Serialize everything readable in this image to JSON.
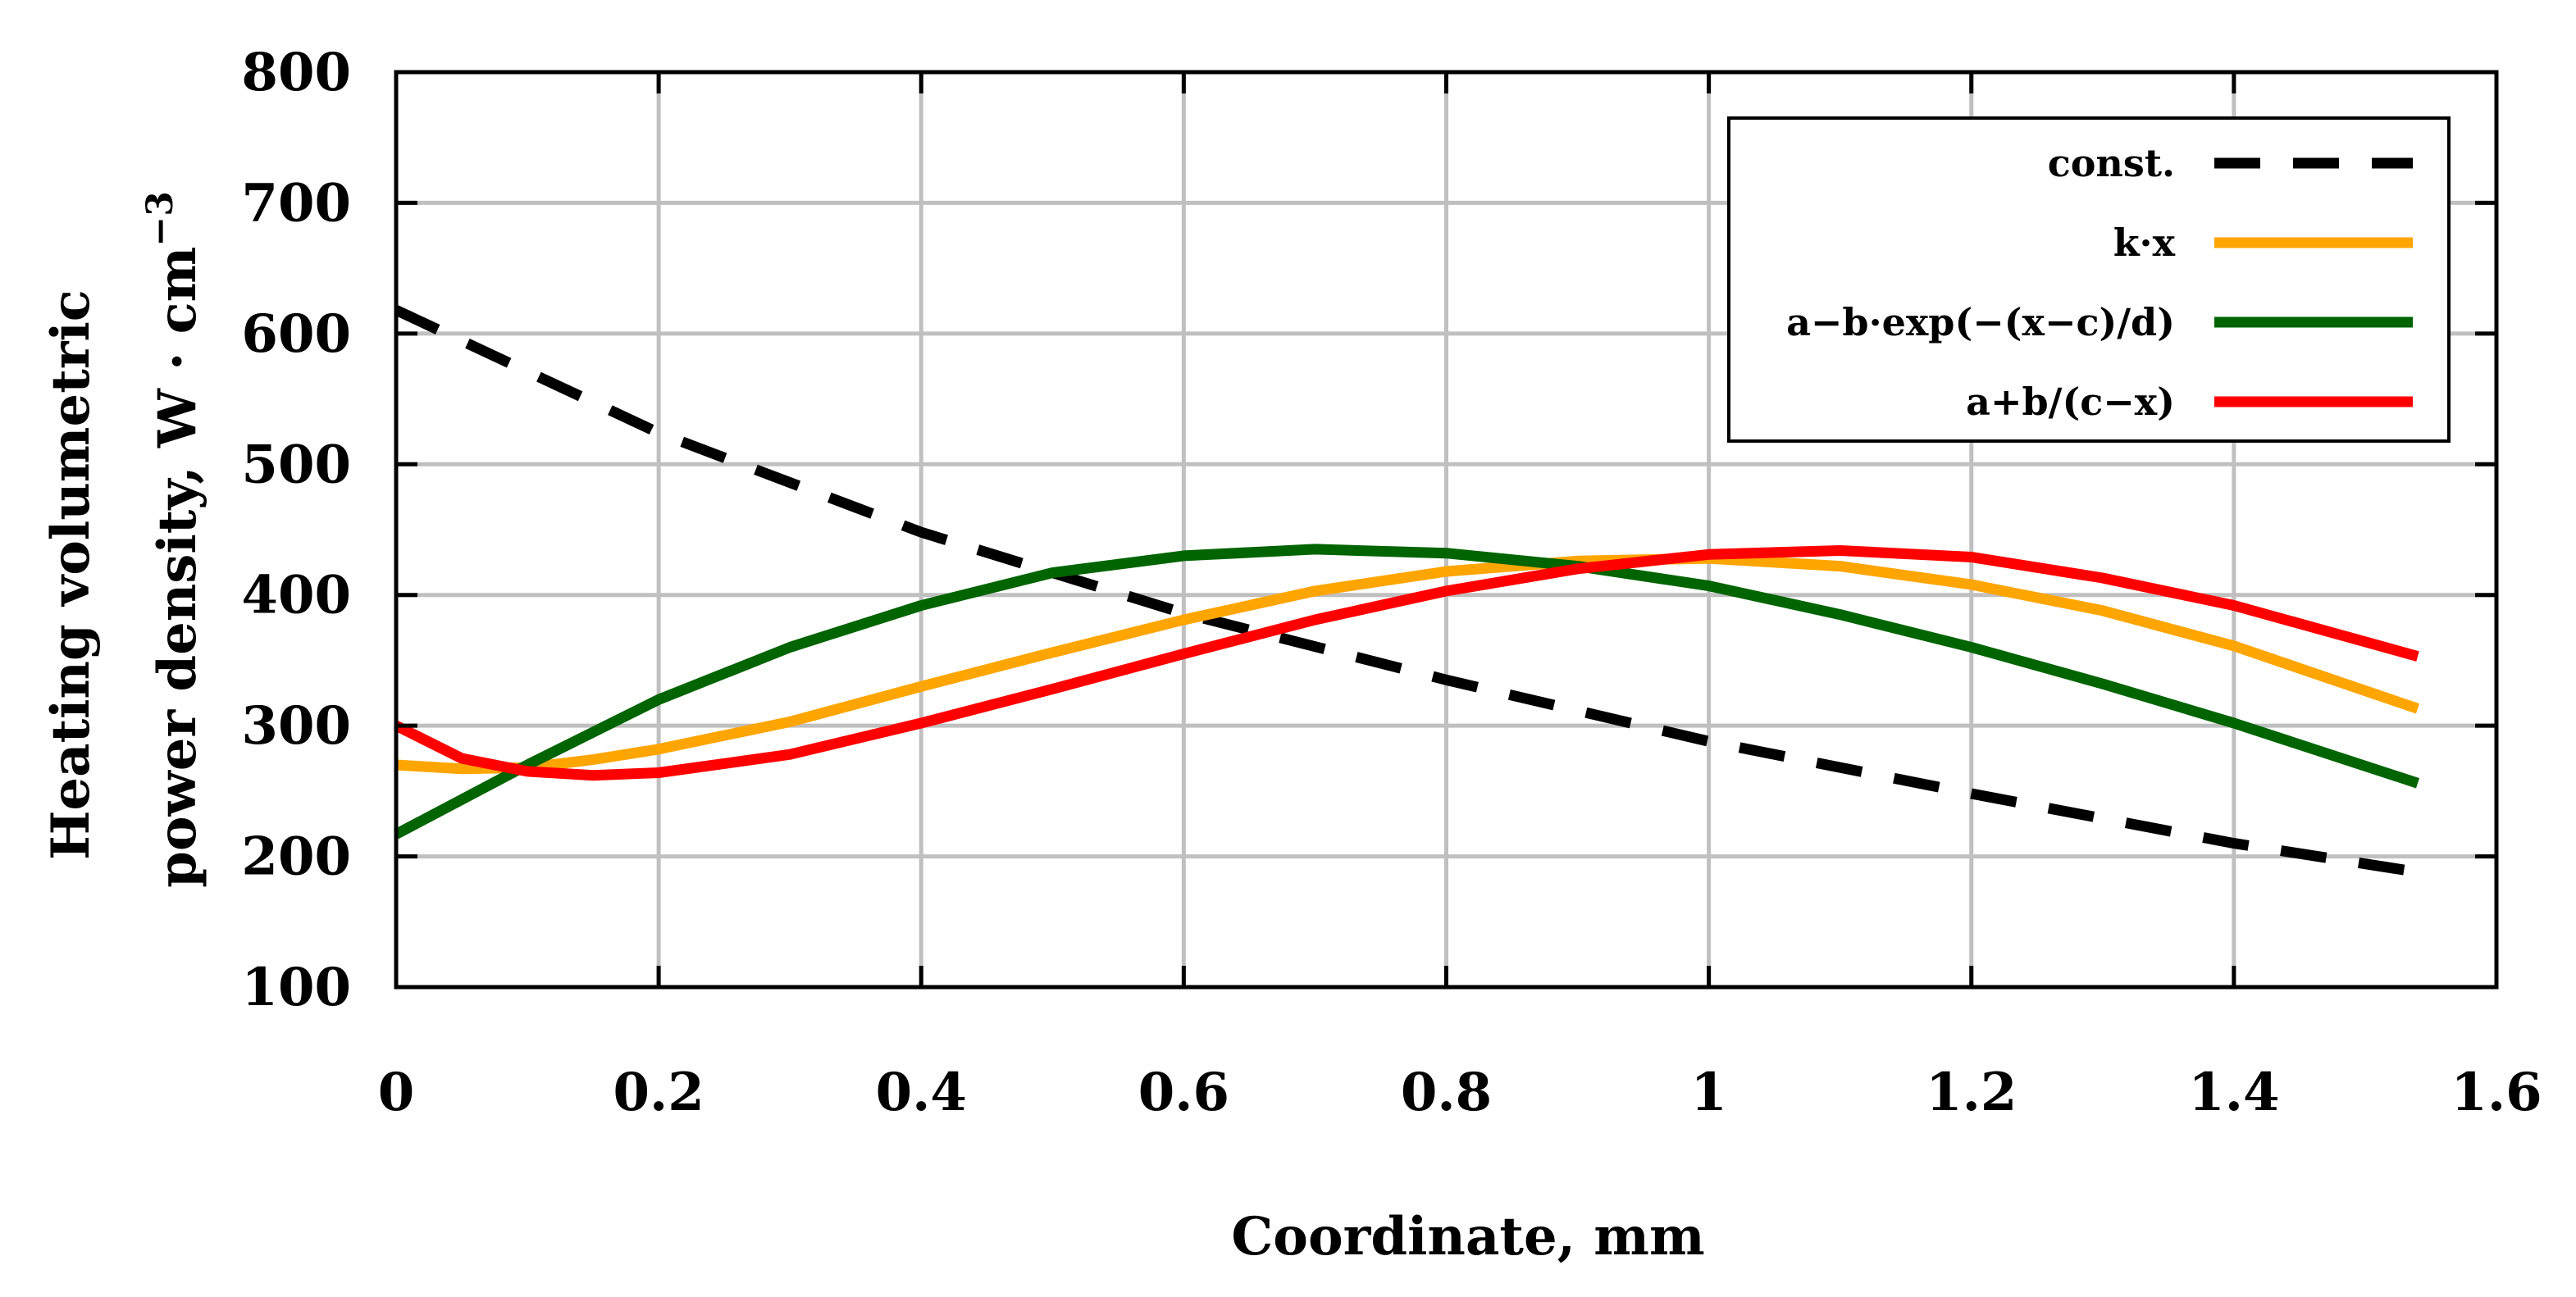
{
  "chart_data": {
    "type": "line",
    "xlabel": "Coordinate, mm",
    "ylabel_line1": "Heating volumetric",
    "ylabel_line2": "power density, W · cm",
    "ylabel_sup": "−3",
    "xlim": [
      0,
      1.6
    ],
    "ylim": [
      100,
      800
    ],
    "xticks": [
      0,
      0.2,
      0.4,
      0.6,
      0.8,
      1.0,
      1.2,
      1.4,
      1.6
    ],
    "xtick_labels": [
      "0",
      "0.2",
      "0.4",
      "0.6",
      "0.8",
      "1",
      "1.2",
      "1.4",
      "1.6"
    ],
    "yticks": [
      100,
      200,
      300,
      400,
      500,
      600,
      700,
      800
    ],
    "ytick_labels": [
      "100",
      "200",
      "300",
      "400",
      "500",
      "600",
      "700",
      "800"
    ],
    "grid": true,
    "legend_position": "top-right",
    "series": [
      {
        "name": "const.",
        "color": "#000000",
        "dash": true,
        "x": [
          0,
          0.2,
          0.4,
          0.6,
          0.8,
          1.0,
          1.2,
          1.4,
          1.54
        ],
        "y": [
          618,
          524,
          448,
          386,
          335,
          288,
          248,
          210,
          188
        ]
      },
      {
        "name": "k·x",
        "color": "#FFA500",
        "dash": false,
        "x": [
          0,
          0.05,
          0.1,
          0.15,
          0.2,
          0.3,
          0.4,
          0.5,
          0.6,
          0.7,
          0.8,
          0.9,
          1.0,
          1.1,
          1.2,
          1.3,
          1.4,
          1.54
        ],
        "y": [
          270,
          267,
          268,
          274,
          282,
          303,
          330,
          356,
          381,
          403,
          418,
          426,
          428,
          422,
          408,
          388,
          361,
          313
        ]
      },
      {
        "name": "a−b·exp(−(x−c)/d)",
        "color": "#006400",
        "dash": false,
        "x": [
          0,
          0.1,
          0.2,
          0.3,
          0.4,
          0.5,
          0.6,
          0.7,
          0.8,
          0.9,
          1.0,
          1.1,
          1.2,
          1.3,
          1.4,
          1.54
        ],
        "y": [
          217,
          270,
          320,
          360,
          392,
          417,
          430,
          435,
          432,
          422,
          407,
          385,
          360,
          332,
          302,
          256
        ]
      },
      {
        "name": "a+b/(c−x)",
        "color": "#FF0000",
        "dash": false,
        "x": [
          0,
          0.05,
          0.1,
          0.15,
          0.2,
          0.3,
          0.4,
          0.5,
          0.6,
          0.7,
          0.8,
          0.9,
          1.0,
          1.1,
          1.2,
          1.3,
          1.4,
          1.54
        ],
        "y": [
          300,
          275,
          265,
          262,
          264,
          278,
          302,
          328,
          355,
          381,
          403,
          420,
          431,
          434,
          429,
          413,
          392,
          353
        ]
      }
    ]
  }
}
